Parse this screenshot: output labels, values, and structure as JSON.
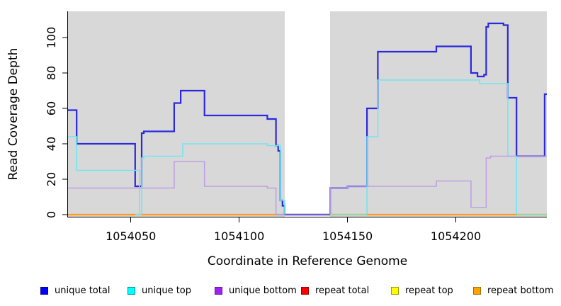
{
  "chart_data": {
    "type": "line",
    "subtype": "step-coverage",
    "title": "",
    "xlabel": "Coordinate in Reference Genome",
    "ylabel": "Read Coverage Depth",
    "xlim": [
      1054021,
      1054242
    ],
    "ylim": [
      0,
      114
    ],
    "x_ticks": [
      1054050,
      1054100,
      1054150,
      1054200
    ],
    "y_ticks": [
      0,
      20,
      40,
      60,
      80,
      100
    ],
    "grid": false,
    "plot_bg": "#d8d8d8",
    "gap_region": {
      "from": 1054121,
      "to": 1054142,
      "color": "#ffffff"
    },
    "series": [
      {
        "key": "unique-total",
        "name": "unique total",
        "color": "#2b29dd",
        "width": 2.2,
        "points": [
          [
            1054021,
            59
          ],
          [
            1054025,
            40
          ],
          [
            1054052,
            16
          ],
          [
            1054055,
            46
          ],
          [
            1054056,
            47
          ],
          [
            1054070,
            63
          ],
          [
            1054073,
            70
          ],
          [
            1054084,
            56
          ],
          [
            1054113,
            54
          ],
          [
            1054117,
            39
          ],
          [
            1054118,
            36
          ],
          [
            1054119,
            8
          ],
          [
            1054120,
            5
          ],
          [
            1054121,
            0
          ],
          [
            1054142,
            15
          ],
          [
            1054150,
            16
          ],
          [
            1054159,
            60
          ],
          [
            1054164,
            92
          ],
          [
            1054191,
            95
          ],
          [
            1054207,
            80
          ],
          [
            1054210,
            78
          ],
          [
            1054213,
            79
          ],
          [
            1054214,
            106
          ],
          [
            1054215,
            108
          ],
          [
            1054222,
            107
          ],
          [
            1054224,
            66
          ],
          [
            1054228,
            33
          ],
          [
            1054241,
            68
          ]
        ]
      },
      {
        "key": "unique-top",
        "name": "unique top",
        "color": "#6fe6f2",
        "width": 1.6,
        "points": [
          [
            1054021,
            44
          ],
          [
            1054025,
            25
          ],
          [
            1054054,
            0
          ],
          [
            1054055,
            32
          ],
          [
            1054056,
            33
          ],
          [
            1054074,
            40
          ],
          [
            1054113,
            39
          ],
          [
            1054119,
            8
          ],
          [
            1054121,
            0
          ],
          [
            1054159,
            44
          ],
          [
            1054164,
            76
          ],
          [
            1054211,
            74
          ],
          [
            1054224,
            33
          ],
          [
            1054228,
            0
          ]
        ]
      },
      {
        "key": "unique-bottom",
        "name": "unique bottom",
        "color": "#c0a0e2",
        "width": 1.6,
        "points": [
          [
            1054021,
            15
          ],
          [
            1054070,
            30
          ],
          [
            1054084,
            16
          ],
          [
            1054113,
            15
          ],
          [
            1054117,
            0
          ],
          [
            1054142,
            15
          ],
          [
            1054150,
            16
          ],
          [
            1054191,
            19
          ],
          [
            1054207,
            4
          ],
          [
            1054214,
            32
          ],
          [
            1054216,
            33
          ]
        ]
      },
      {
        "key": "repeat-total",
        "name": "repeat total",
        "color": "#ff0000",
        "width": 1.5,
        "points": [
          [
            1054021,
            0
          ]
        ]
      },
      {
        "key": "repeat-top",
        "name": "repeat top",
        "color": "#ffff00",
        "width": 1.5,
        "points": [
          [
            1054021,
            0
          ]
        ]
      },
      {
        "key": "repeat-bottom",
        "name": "repeat bottom",
        "color": "#ff9d1c",
        "width": 2.2,
        "points": [
          [
            1054021,
            0
          ]
        ]
      }
    ],
    "baseline_overlays": [
      {
        "from": 1054052,
        "to": 1054055,
        "color": "#8fdcc8"
      },
      {
        "from": 1054117,
        "to": 1054121,
        "color": "#aaa3e2"
      },
      {
        "from": 1054121,
        "to": 1054142,
        "color": "#6a5fd6"
      },
      {
        "from": 1054142,
        "to": 1054159,
        "color": "#97d5a5"
      },
      {
        "from": 1054228,
        "to": 1054242,
        "color": "#97d5a5"
      }
    ],
    "legend": [
      {
        "key": "unique-total",
        "label": "unique total",
        "fill": "#0000ff",
        "border": "#000099"
      },
      {
        "key": "unique-top",
        "label": "unique top",
        "fill": "#00ffff",
        "border": "#008f8f"
      },
      {
        "key": "unique-bottom",
        "label": "unique bottom",
        "fill": "#a020f0",
        "border": "#6a11a8"
      },
      {
        "key": "repeat-total",
        "label": "repeat total",
        "fill": "#ff0000",
        "border": "#990000"
      },
      {
        "key": "repeat-top",
        "label": "repeat top",
        "fill": "#ffff00",
        "border": "#999900"
      },
      {
        "key": "repeat-bottom",
        "label": "repeat bottom",
        "fill": "#ffa500",
        "border": "#a86a00"
      }
    ]
  }
}
